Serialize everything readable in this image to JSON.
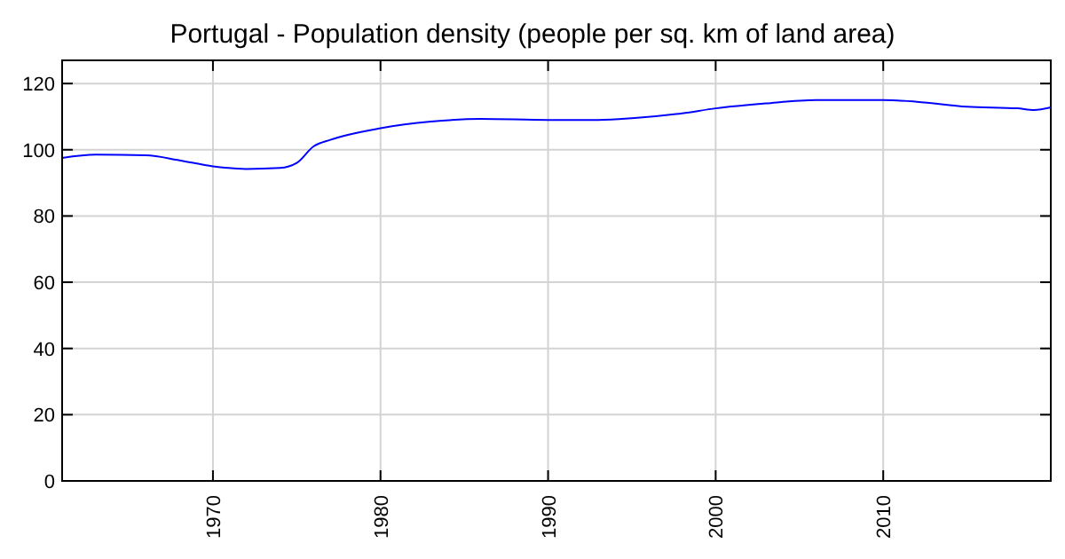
{
  "chart_data": {
    "type": "line",
    "title": "Portugal - Population density (people per sq. km of land area)",
    "x": [
      1961,
      1963,
      1966,
      1968,
      1970,
      1972,
      1974,
      1975,
      1976,
      1977,
      1980,
      1983,
      1986,
      1990,
      1993,
      1995,
      1998,
      2000,
      2003,
      2006,
      2010,
      2012,
      2015,
      2018,
      2019,
      2020
    ],
    "series": [
      {
        "color": "#0000ff",
        "values": [
          97.5,
          98.5,
          98.3,
          96.8,
          95,
          94.2,
          94.5,
          96,
          101,
          103,
          106.5,
          108.5,
          109.3,
          109,
          109,
          109.5,
          111,
          112.5,
          114,
          115,
          115,
          114.5,
          113,
          112.5,
          112,
          112.8
        ]
      }
    ],
    "xlim": [
      1961,
      2020
    ],
    "xticks": [
      1970,
      1980,
      1990,
      2000,
      2010
    ],
    "ylim": [
      0,
      127
    ],
    "yticks": [
      0,
      20,
      40,
      60,
      80,
      100,
      120
    ],
    "grid": true
  }
}
